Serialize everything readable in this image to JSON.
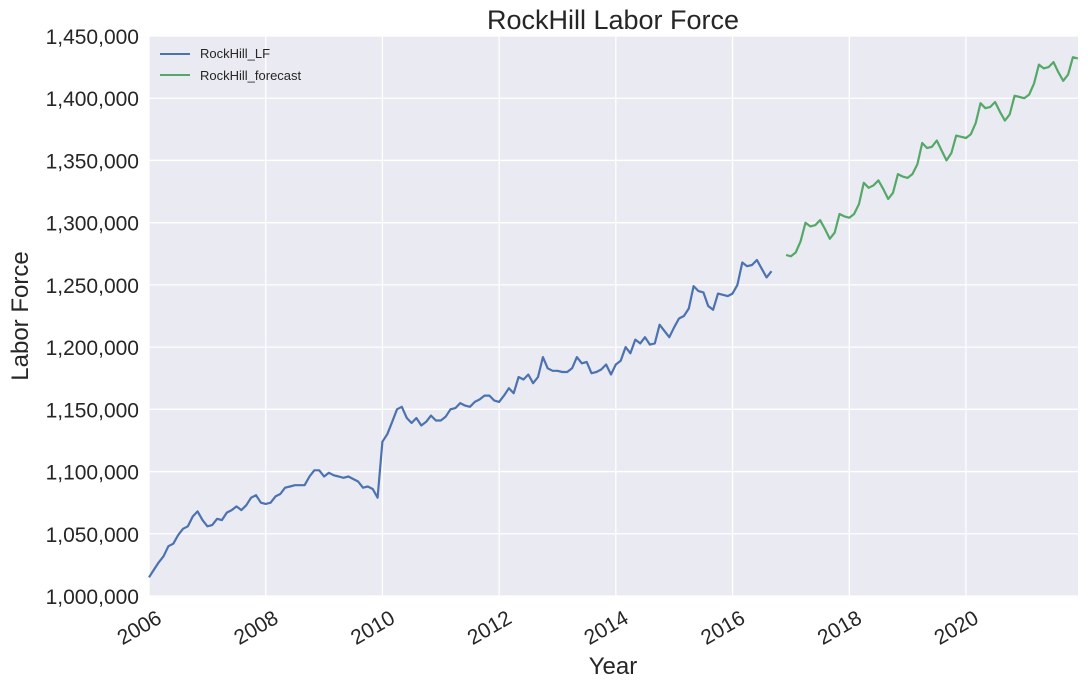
{
  "chart_data": {
    "type": "line",
    "title": "RockHill Labor Force",
    "xlabel": "Year",
    "ylabel": "Labor Force",
    "xlim": [
      2006.0,
      2021.92
    ],
    "ylim": [
      1000000,
      1450000
    ],
    "x_ticks": [
      2006,
      2008,
      2010,
      2012,
      2014,
      2016,
      2018,
      2020
    ],
    "x_tick_labels": [
      "2006",
      "2008",
      "2010",
      "2012",
      "2014",
      "2016",
      "2018",
      "2020"
    ],
    "y_ticks": [
      1000000,
      1050000,
      1100000,
      1150000,
      1200000,
      1250000,
      1300000,
      1350000,
      1400000,
      1450000
    ],
    "y_tick_labels": [
      "1,000,000",
      "1,050,000",
      "1,100,000",
      "1,150,000",
      "1,200,000",
      "1,250,000",
      "1,300,000",
      "1,350,000",
      "1,400,000",
      "1,450,000"
    ],
    "grid": true,
    "legend_position": "top-left",
    "background": "#eaeaf2",
    "series": [
      {
        "name": "RockHill_LF",
        "color": "#4c72b0",
        "x": [
          2006.0,
          2006.083,
          2006.167,
          2006.25,
          2006.333,
          2006.417,
          2006.5,
          2006.583,
          2006.667,
          2006.75,
          2006.833,
          2006.917,
          2007.0,
          2007.083,
          2007.167,
          2007.25,
          2007.333,
          2007.417,
          2007.5,
          2007.583,
          2007.667,
          2007.75,
          2007.833,
          2007.917,
          2008.0,
          2008.083,
          2008.167,
          2008.25,
          2008.333,
          2008.417,
          2008.5,
          2008.583,
          2008.667,
          2008.75,
          2008.833,
          2008.917,
          2009.0,
          2009.083,
          2009.167,
          2009.25,
          2009.333,
          2009.417,
          2009.5,
          2009.583,
          2009.667,
          2009.75,
          2009.833,
          2009.917,
          2010.0,
          2010.083,
          2010.167,
          2010.25,
          2010.333,
          2010.417,
          2010.5,
          2010.583,
          2010.667,
          2010.75,
          2010.833,
          2010.917,
          2011.0,
          2011.083,
          2011.167,
          2011.25,
          2011.333,
          2011.417,
          2011.5,
          2011.583,
          2011.667,
          2011.75,
          2011.833,
          2011.917,
          2012.0,
          2012.083,
          2012.167,
          2012.25,
          2012.333,
          2012.417,
          2012.5,
          2012.583,
          2012.667,
          2012.75,
          2012.833,
          2012.917,
          2013.0,
          2013.083,
          2013.167,
          2013.25,
          2013.333,
          2013.417,
          2013.5,
          2013.583,
          2013.667,
          2013.75,
          2013.833,
          2013.917,
          2014.0,
          2014.083,
          2014.167,
          2014.25,
          2014.333,
          2014.417,
          2014.5,
          2014.583,
          2014.667,
          2014.75,
          2014.833,
          2014.917,
          2015.0,
          2015.083,
          2015.167,
          2015.25,
          2015.333,
          2015.417,
          2015.5,
          2015.583,
          2015.667,
          2015.75,
          2015.833,
          2015.917,
          2016.0,
          2016.083,
          2016.167,
          2016.25,
          2016.333,
          2016.417,
          2016.5,
          2016.583,
          2016.667
        ],
        "y": [
          1015000,
          1021000,
          1027000,
          1032000,
          1040000,
          1042000,
          1049000,
          1054000,
          1056000,
          1064000,
          1068000,
          1061000,
          1056000,
          1057000,
          1062000,
          1061000,
          1067000,
          1069000,
          1072000,
          1069000,
          1073000,
          1079000,
          1081000,
          1075000,
          1074000,
          1075000,
          1080000,
          1082000,
          1087000,
          1088000,
          1089000,
          1089000,
          1089000,
          1096000,
          1101000,
          1101000,
          1096000,
          1099000,
          1097000,
          1096000,
          1095000,
          1096000,
          1094000,
          1092000,
          1087000,
          1088000,
          1086000,
          1079000,
          1124000,
          1130000,
          1140000,
          1150000,
          1152000,
          1143000,
          1139000,
          1143000,
          1137000,
          1140000,
          1145000,
          1141000,
          1141000,
          1144000,
          1150000,
          1151000,
          1155000,
          1153000,
          1152000,
          1156000,
          1158000,
          1161000,
          1161000,
          1157000,
          1156000,
          1161000,
          1167000,
          1163000,
          1176000,
          1174000,
          1178000,
          1171000,
          1176000,
          1192000,
          1183000,
          1181000,
          1181000,
          1180000,
          1180000,
          1183000,
          1192000,
          1187000,
          1188000,
          1179000,
          1180000,
          1182000,
          1186000,
          1178000,
          1186000,
          1189000,
          1200000,
          1195000,
          1206000,
          1203000,
          1208000,
          1202000,
          1203000,
          1218000,
          1213000,
          1208000,
          1216000,
          1223000,
          1225000,
          1231000,
          1249000,
          1245000,
          1244000,
          1233000,
          1230000,
          1243000,
          1242000,
          1241000,
          1243000,
          1250000,
          1268000,
          1265000,
          1266000,
          1270000,
          1263000,
          1256000,
          1261000
        ]
      },
      {
        "name": "RockHill_forecast",
        "color": "#55a868",
        "x": [
          2016.917,
          2017.0,
          2017.083,
          2017.167,
          2017.25,
          2017.333,
          2017.417,
          2017.5,
          2017.583,
          2017.667,
          2017.75,
          2017.833,
          2017.917,
          2018.0,
          2018.083,
          2018.167,
          2018.25,
          2018.333,
          2018.417,
          2018.5,
          2018.583,
          2018.667,
          2018.75,
          2018.833,
          2018.917,
          2019.0,
          2019.083,
          2019.167,
          2019.25,
          2019.333,
          2019.417,
          2019.5,
          2019.583,
          2019.667,
          2019.75,
          2019.833,
          2019.917,
          2020.0,
          2020.083,
          2020.167,
          2020.25,
          2020.333,
          2020.417,
          2020.5,
          2020.583,
          2020.667,
          2020.75,
          2020.833,
          2020.917,
          2021.0,
          2021.083,
          2021.167,
          2021.25,
          2021.333,
          2021.417,
          2021.5,
          2021.583,
          2021.667,
          2021.75,
          2021.833,
          2021.917
        ],
        "y": [
          1274000,
          1273000,
          1276000,
          1285000,
          1300000,
          1297000,
          1298000,
          1302000,
          1295000,
          1287000,
          1292000,
          1307000,
          1305000,
          1304000,
          1307000,
          1315000,
          1332000,
          1328000,
          1330000,
          1334000,
          1327000,
          1319000,
          1324000,
          1339000,
          1337000,
          1336000,
          1339000,
          1347000,
          1364000,
          1360000,
          1361000,
          1366000,
          1358000,
          1350000,
          1356000,
          1370000,
          1369000,
          1368000,
          1371000,
          1380000,
          1396000,
          1392000,
          1393000,
          1397000,
          1389000,
          1382000,
          1387000,
          1402000,
          1401000,
          1400000,
          1403000,
          1412000,
          1427000,
          1424000,
          1425000,
          1429000,
          1421000,
          1414000,
          1419000,
          1433000,
          1432000
        ]
      }
    ]
  }
}
